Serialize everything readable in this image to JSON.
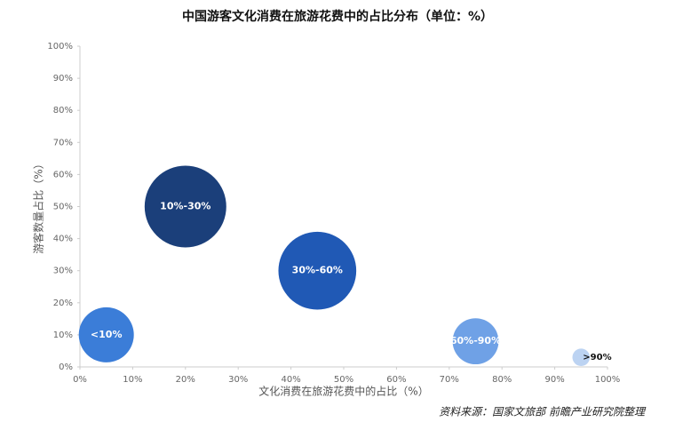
{
  "chart_data": {
    "type": "bubble",
    "title": "中国游客文化消费在旅游花费中的占比分布（单位：%）",
    "x_label": "文化消费在旅游花费中的占比（%）",
    "y_label": "游客数量占比（%）",
    "source": "资料来源：国家文旅部 前瞻产业研究院整理",
    "labels": [
      "<10%",
      "10%-30%",
      "30%-60%",
      "60%-90%",
      ">90%"
    ],
    "x": [
      5,
      20,
      45,
      75,
      95
    ],
    "values": [
      10,
      50,
      30,
      8,
      3
    ],
    "sizes": [
      10,
      22,
      20,
      7,
      1
    ],
    "colors": [
      "#3b7dd8",
      "#1b3f7a",
      "#2059b5",
      "#6fa1e6",
      "#bcd3f2"
    ],
    "xlim": [
      0,
      100
    ],
    "ylim": [
      0,
      100
    ],
    "xticks": [
      {
        "value": 0,
        "label": "0%"
      },
      {
        "value": 10,
        "label": "10%"
      },
      {
        "value": 20,
        "label": "20%"
      },
      {
        "value": 30,
        "label": "30%"
      },
      {
        "value": 40,
        "label": "40%"
      },
      {
        "value": 50,
        "label": "50%"
      },
      {
        "value": 60,
        "label": "60%"
      },
      {
        "value": 70,
        "label": "70%"
      },
      {
        "value": 80,
        "label": "80%"
      },
      {
        "value": 90,
        "label": "90%"
      },
      {
        "value": 100,
        "label": "100%"
      }
    ],
    "yticks": [
      {
        "value": 0,
        "label": "0%"
      },
      {
        "value": 10,
        "label": "10%"
      },
      {
        "value": 20,
        "label": "20%"
      },
      {
        "value": 30,
        "label": "30%"
      },
      {
        "value": 40,
        "label": "40%"
      },
      {
        "value": 50,
        "label": "50%"
      },
      {
        "value": 60,
        "label": "60%"
      },
      {
        "value": 70,
        "label": "70%"
      },
      {
        "value": 80,
        "label": "80%"
      },
      {
        "value": 90,
        "label": "90%"
      },
      {
        "value": 100,
        "label": "100%"
      }
    ]
  }
}
